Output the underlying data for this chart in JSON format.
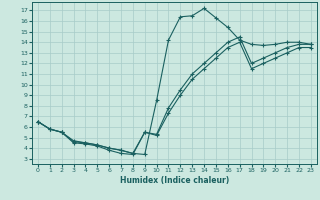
{
  "xlabel": "Humidex (Indice chaleur)",
  "background_color": "#cce8e0",
  "grid_color": "#a8ccc8",
  "line_color": "#1a6060",
  "xlim": [
    -0.5,
    23.5
  ],
  "ylim": [
    2.5,
    17.8
  ],
  "xticks": [
    0,
    1,
    2,
    3,
    4,
    5,
    6,
    7,
    8,
    9,
    10,
    11,
    12,
    13,
    14,
    15,
    16,
    17,
    18,
    19,
    20,
    21,
    22,
    23
  ],
  "yticks": [
    3,
    4,
    5,
    6,
    7,
    8,
    9,
    10,
    11,
    12,
    13,
    14,
    15,
    16,
    17
  ],
  "line1_x": [
    0,
    1,
    2,
    3,
    4,
    5,
    6,
    7,
    8,
    9,
    10,
    11,
    12,
    13,
    14,
    15,
    16,
    17,
    18,
    19,
    20,
    21,
    22,
    23
  ],
  "line1_y": [
    6.5,
    5.8,
    5.5,
    4.7,
    4.5,
    4.3,
    4.0,
    3.8,
    3.5,
    3.4,
    8.5,
    14.2,
    16.4,
    16.5,
    17.2,
    16.3,
    15.4,
    14.2,
    13.8,
    13.7,
    13.8,
    14.0,
    14.0,
    13.8
  ],
  "line2_x": [
    0,
    1,
    2,
    3,
    4,
    5,
    6,
    7,
    8,
    9,
    10,
    11,
    12,
    13,
    14,
    15,
    16,
    17,
    18,
    19,
    20,
    21,
    22,
    23
  ],
  "line2_y": [
    6.5,
    5.8,
    5.5,
    4.6,
    4.5,
    4.3,
    4.0,
    3.8,
    3.5,
    5.5,
    5.3,
    7.8,
    9.5,
    11.0,
    12.0,
    13.0,
    14.0,
    14.5,
    12.0,
    12.5,
    13.0,
    13.5,
    13.8,
    13.8
  ],
  "line3_x": [
    0,
    1,
    2,
    3,
    4,
    5,
    6,
    7,
    8,
    9,
    10,
    11,
    12,
    13,
    14,
    15,
    16,
    17,
    18,
    19,
    20,
    21,
    22,
    23
  ],
  "line3_y": [
    6.5,
    5.8,
    5.5,
    4.5,
    4.4,
    4.2,
    3.8,
    3.5,
    3.4,
    5.5,
    5.2,
    7.3,
    9.0,
    10.5,
    11.5,
    12.5,
    13.5,
    14.0,
    11.5,
    12.0,
    12.5,
    13.0,
    13.5,
    13.5
  ]
}
